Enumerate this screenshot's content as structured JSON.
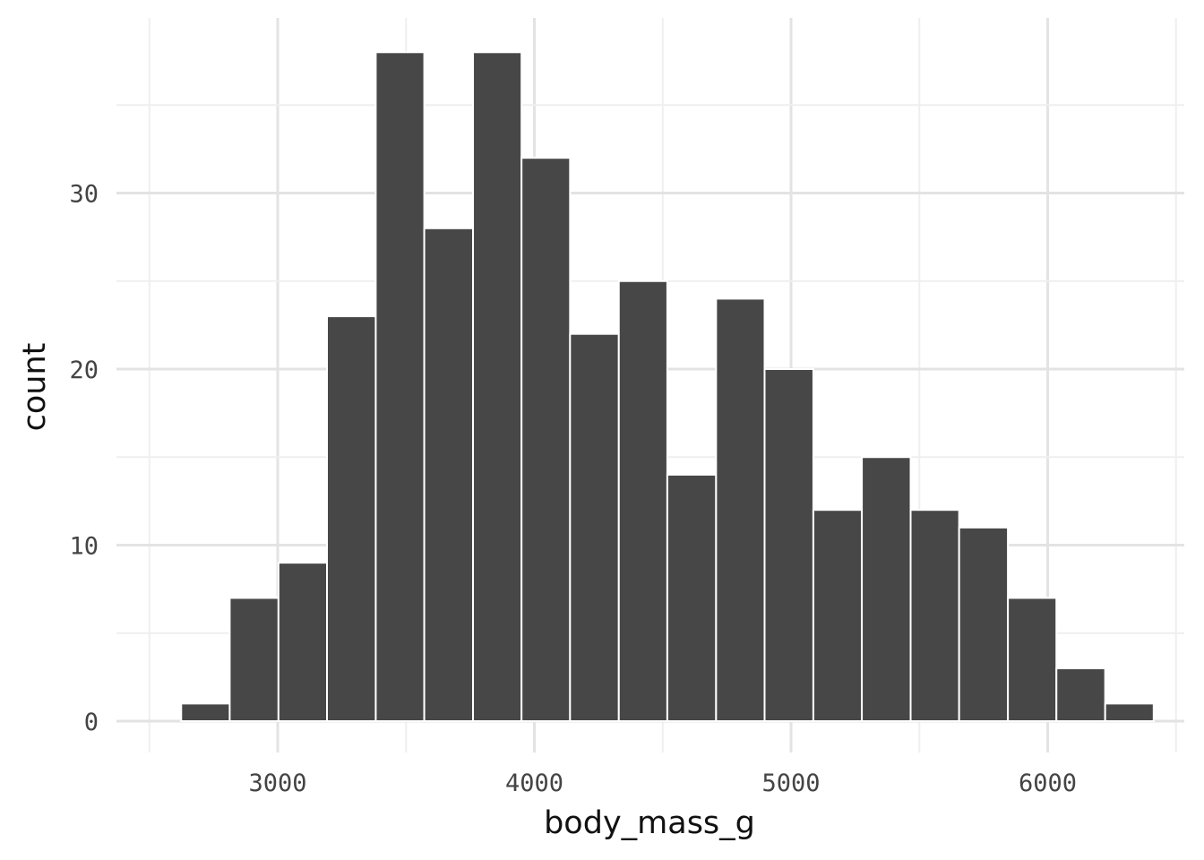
{
  "chart_data": {
    "type": "bar",
    "subtype": "histogram",
    "xlabel": "body_mass_g",
    "ylabel": "count",
    "xlim": [
      2500,
      6500
    ],
    "ylim": [
      0,
      38
    ],
    "x_ticks": [
      3000,
      4000,
      5000,
      6000
    ],
    "y_ticks": [
      0,
      10,
      20,
      30
    ],
    "grid": true,
    "colors": {
      "bar_fill": "#474747",
      "bar_outline": "#ffffff",
      "grid": "#e3e3e3"
    },
    "bins": [
      {
        "x0": 2624,
        "x1": 2813,
        "count": 1
      },
      {
        "x0": 2813,
        "x1": 3003,
        "count": 7
      },
      {
        "x0": 3003,
        "x1": 3192,
        "count": 9
      },
      {
        "x0": 3192,
        "x1": 3382,
        "count": 23
      },
      {
        "x0": 3382,
        "x1": 3571,
        "count": 38
      },
      {
        "x0": 3571,
        "x1": 3761,
        "count": 28
      },
      {
        "x0": 3761,
        "x1": 3950,
        "count": 38
      },
      {
        "x0": 3950,
        "x1": 4139,
        "count": 32
      },
      {
        "x0": 4139,
        "x1": 4329,
        "count": 22
      },
      {
        "x0": 4329,
        "x1": 4518,
        "count": 25
      },
      {
        "x0": 4518,
        "x1": 4708,
        "count": 14
      },
      {
        "x0": 4708,
        "x1": 4897,
        "count": 24
      },
      {
        "x0": 4897,
        "x1": 5087,
        "count": 20
      },
      {
        "x0": 5087,
        "x1": 5276,
        "count": 12
      },
      {
        "x0": 5276,
        "x1": 5466,
        "count": 15
      },
      {
        "x0": 5466,
        "x1": 5655,
        "count": 12
      },
      {
        "x0": 5655,
        "x1": 5845,
        "count": 11
      },
      {
        "x0": 5845,
        "x1": 6034,
        "count": 7
      },
      {
        "x0": 6034,
        "x1": 6224,
        "count": 3
      },
      {
        "x0": 6224,
        "x1": 6413,
        "count": 1
      }
    ]
  }
}
